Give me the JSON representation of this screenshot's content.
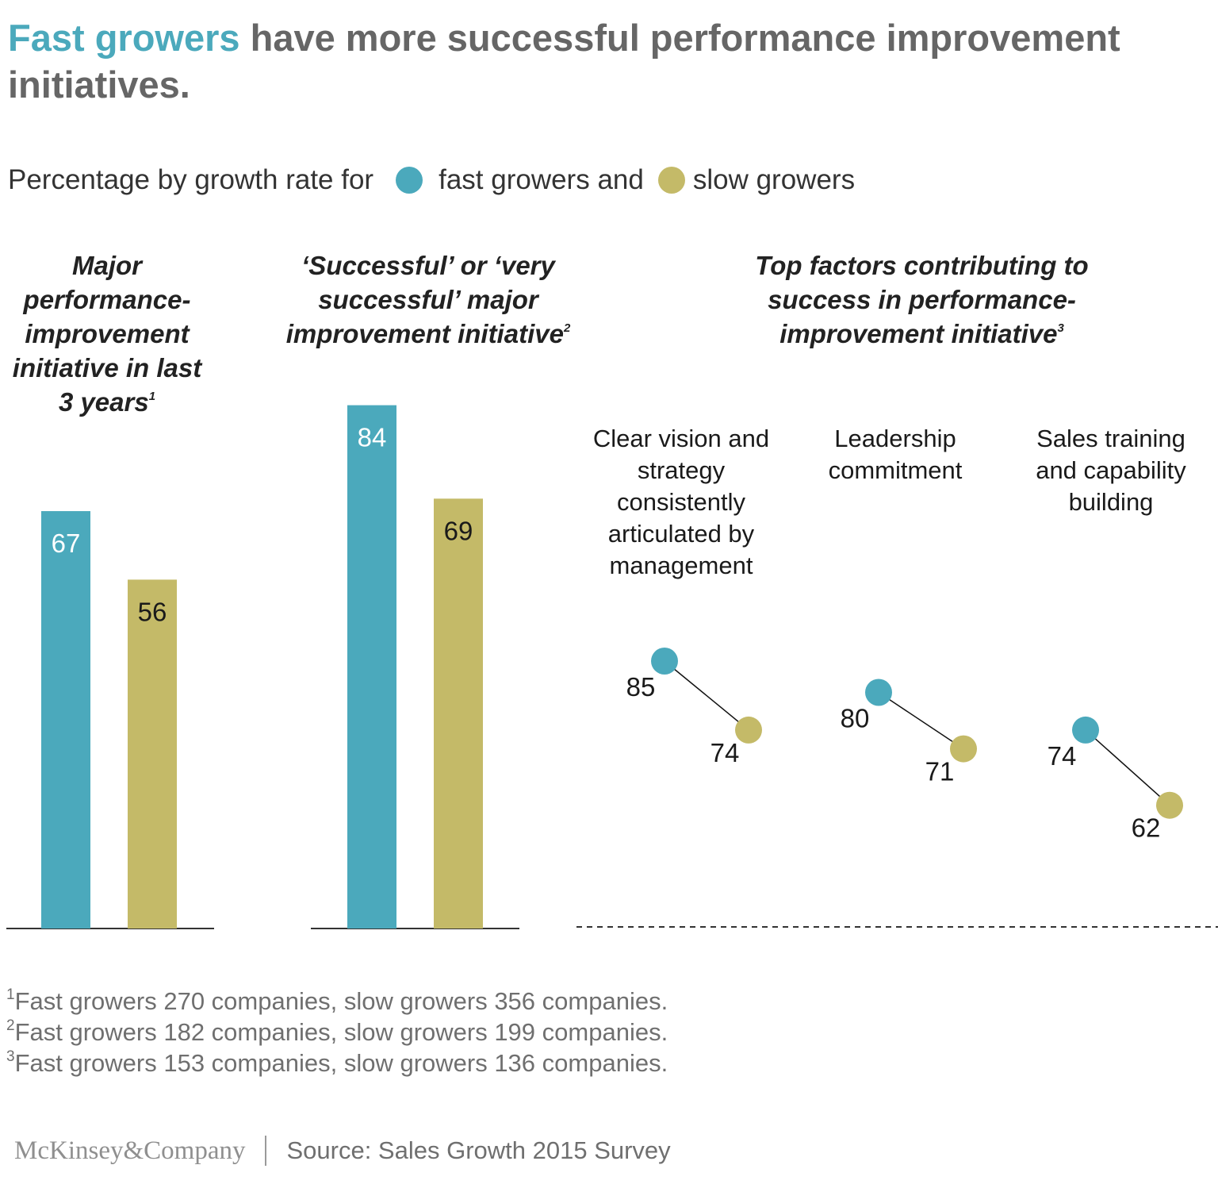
{
  "title": {
    "accent": "Fast growers",
    "rest": "have more successful performance improvement initiatives."
  },
  "legend": {
    "intro": "Percentage by growth rate for",
    "fast_label": "fast growers and",
    "slow_label": "slow growers"
  },
  "colors": {
    "fast": "#4ba9bc",
    "slow": "#c4ba68",
    "title_accent": "#4ba9bc",
    "title_text": "#666666",
    "axis": "#333333",
    "connector": "#111111"
  },
  "panels": {
    "p1": {
      "title": "Major performance-improvement initiative in last 3 years",
      "note": "1"
    },
    "p2": {
      "title": "‘Successful’ or ‘very successful’ major improvement initiative",
      "note": "2"
    },
    "p3": {
      "title": "Top factors contributing to success in performance-improvement initiative",
      "note": "3"
    }
  },
  "chart_data": [
    {
      "type": "bar",
      "title": "Major performance-improvement initiative in last 3 years",
      "unit": "%",
      "categories": [
        "Fast growers",
        "Slow growers"
      ],
      "values": [
        67,
        56
      ],
      "ylim": [
        0,
        100
      ]
    },
    {
      "type": "bar",
      "title": "‘Successful’ or ‘very successful’ major improvement initiative",
      "unit": "%",
      "categories": [
        "Fast growers",
        "Slow growers"
      ],
      "values": [
        84,
        69
      ],
      "ylim": [
        0,
        100
      ]
    },
    {
      "type": "scatter",
      "title": "Top factors contributing to success in performance-improvement initiative",
      "unit": "%",
      "categories": [
        "Clear vision and strategy consistently articulated by management",
        "Leadership commitment",
        "Sales training and capability building"
      ],
      "series": [
        {
          "name": "fast growers",
          "values": [
            85,
            80,
            74
          ]
        },
        {
          "name": "slow growers",
          "values": [
            74,
            71,
            62
          ]
        }
      ]
    }
  ],
  "footnotes": [
    {
      "mark": "1",
      "text": "Fast growers 270 companies, slow growers 356 companies."
    },
    {
      "mark": "2",
      "text": "Fast growers 182 companies, slow growers 199 companies."
    },
    {
      "mark": "3",
      "text": "Fast growers 153 companies, slow growers 136 companies."
    }
  ],
  "footer": {
    "brand": "McKinsey&Company",
    "source": "Source: Sales Growth 2015 Survey"
  }
}
